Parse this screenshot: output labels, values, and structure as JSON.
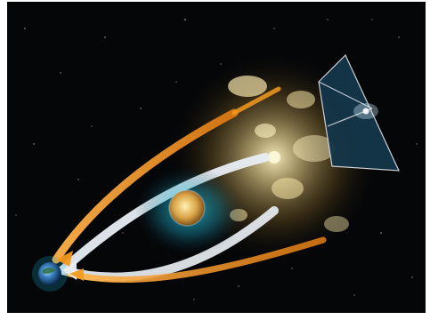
{
  "image": {
    "kind": "illustration",
    "subject_icons": [
      "observer-planet-icon",
      "foreground-galaxy-icon",
      "galaxy-cluster-icon",
      "background-galaxy-icon"
    ],
    "colors": {
      "space": "#050608",
      "frame": "#ffffff",
      "cluster_glow": "#e8d08a",
      "halo_blue": "#1aa7c6",
      "ray_white": "#e8eef3",
      "ray_orange": "#f39a1f",
      "wedge_fill": "#14364a"
    }
  }
}
